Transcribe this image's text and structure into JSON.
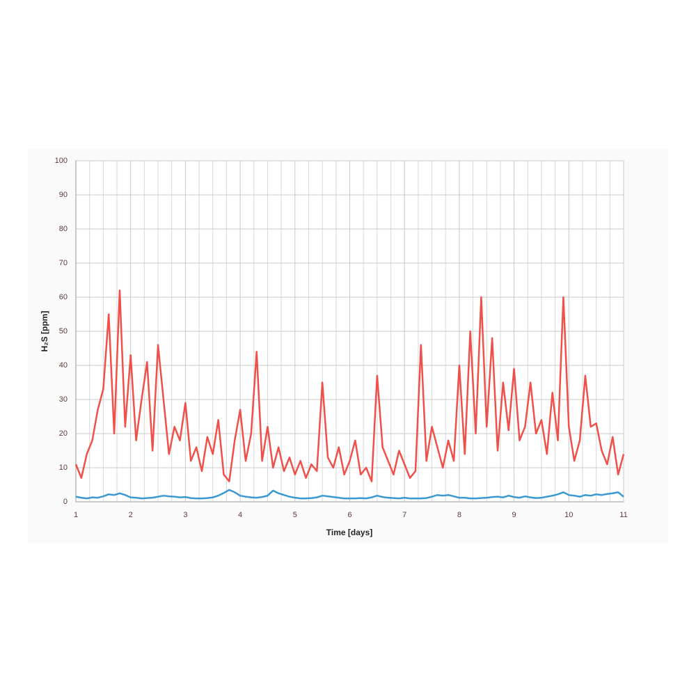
{
  "chart_data": {
    "type": "line",
    "xlabel": "Time [days]",
    "ylabel": "H₂S [ppm]",
    "x": [
      1,
      1.1,
      1.2,
      1.3,
      1.4,
      1.5,
      1.6,
      1.7,
      1.8,
      1.9,
      2,
      2.1,
      2.2,
      2.3,
      2.4,
      2.5,
      2.6,
      2.7,
      2.8,
      2.9,
      3,
      3.1,
      3.2,
      3.3,
      3.4,
      3.5,
      3.6,
      3.7,
      3.8,
      3.9,
      4,
      4.1,
      4.2,
      4.3,
      4.4,
      4.5,
      4.6,
      4.7,
      4.8,
      4.9,
      5,
      5.1,
      5.2,
      5.3,
      5.4,
      5.5,
      5.6,
      5.7,
      5.8,
      5.9,
      6,
      6.1,
      6.2,
      6.3,
      6.4,
      6.5,
      6.6,
      6.7,
      6.8,
      6.9,
      7,
      7.1,
      7.2,
      7.3,
      7.4,
      7.5,
      7.6,
      7.7,
      7.8,
      7.9,
      8,
      8.1,
      8.2,
      8.3,
      8.4,
      8.5,
      8.6,
      8.7,
      8.8,
      8.9,
      9,
      9.1,
      9.2,
      9.3,
      9.4,
      9.5,
      9.6,
      9.7,
      9.8,
      9.9,
      10,
      10.1,
      10.2,
      10.3,
      10.4,
      10.5,
      10.6,
      10.7,
      10.8,
      10.9,
      11
    ],
    "series": [
      {
        "color": "#f0504a",
        "values": [
          11,
          7,
          14,
          18,
          27,
          33,
          55,
          20,
          62,
          22,
          43,
          18,
          30,
          41,
          15,
          46,
          30,
          14,
          22,
          18,
          29,
          12,
          16,
          9,
          19,
          14,
          24,
          8,
          6,
          18,
          27,
          12,
          20,
          44,
          12,
          22,
          10,
          16,
          9,
          13,
          8,
          12,
          7,
          11,
          9,
          35,
          13,
          10,
          16,
          8,
          12,
          18,
          8,
          10,
          6,
          37,
          16,
          12,
          8,
          15,
          11,
          7,
          9,
          46,
          12,
          22,
          16,
          10,
          18,
          12,
          40,
          14,
          50,
          20,
          60,
          22,
          48,
          15,
          35,
          21,
          39,
          18,
          22,
          35,
          20,
          24,
          14,
          32,
          18,
          60,
          22,
          12,
          18,
          37,
          22,
          23,
          15,
          11,
          19,
          8,
          14
        ]
      },
      {
        "color": "#3a99d0",
        "values": [
          1.5,
          1.2,
          1.0,
          1.3,
          1.2,
          1.6,
          2.2,
          2.0,
          2.5,
          2.0,
          1.3,
          1.2,
          1.0,
          1.1,
          1.2,
          1.5,
          1.8,
          1.6,
          1.5,
          1.3,
          1.4,
          1.1,
          1.0,
          1.0,
          1.1,
          1.3,
          1.8,
          2.6,
          3.5,
          2.8,
          1.8,
          1.5,
          1.3,
          1.2,
          1.4,
          1.8,
          3.3,
          2.5,
          2.0,
          1.5,
          1.2,
          1.0,
          1.0,
          1.1,
          1.3,
          1.8,
          1.6,
          1.4,
          1.2,
          1.0,
          1.0,
          1.0,
          1.1,
          1.0,
          1.3,
          1.8,
          1.4,
          1.2,
          1.1,
          1.0,
          1.2,
          1.0,
          1.0,
          1.0,
          1.1,
          1.5,
          2.0,
          1.8,
          2.0,
          1.6,
          1.2,
          1.2,
          1.0,
          1.0,
          1.1,
          1.2,
          1.4,
          1.5,
          1.3,
          1.8,
          1.4,
          1.2,
          1.6,
          1.3,
          1.1,
          1.2,
          1.5,
          1.8,
          2.2,
          2.8,
          2.0,
          1.8,
          1.5,
          2.0,
          1.8,
          2.2,
          2.0,
          2.3,
          2.5,
          2.8,
          1.5
        ]
      }
    ],
    "xlim": [
      1,
      11
    ],
    "xticks": [
      1,
      2,
      3,
      4,
      5,
      6,
      7,
      8,
      9,
      10,
      11
    ],
    "ylim": [
      0,
      100
    ],
    "yticks": [
      0,
      10,
      20,
      30,
      40,
      50,
      60,
      70,
      80,
      90,
      100
    ],
    "grid": true
  }
}
